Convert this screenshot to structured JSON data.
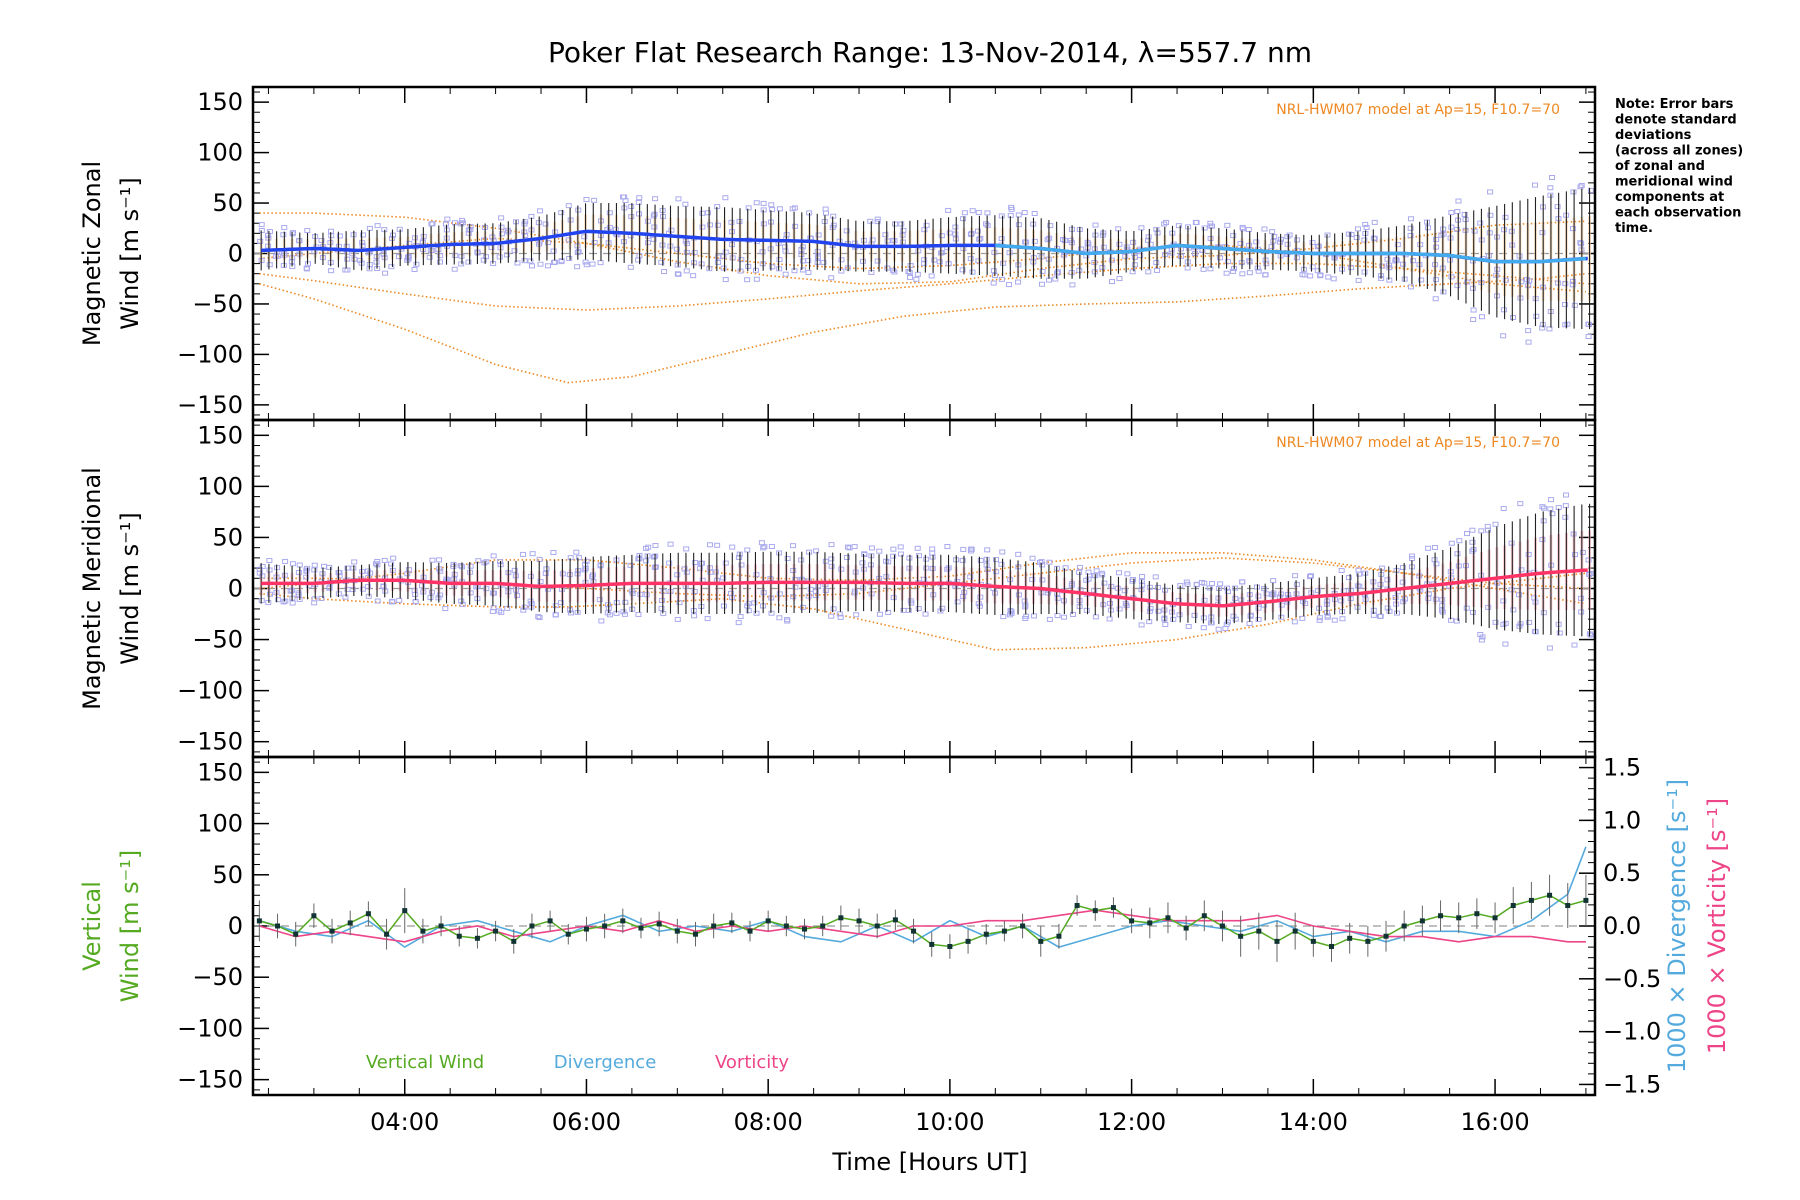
{
  "title": "Poker Flat Research Range: 13-Nov-2014, λ=557.7 nm",
  "note": [
    "Note: Error bars",
    "denote standard",
    "deviations",
    "(across all zones)",
    "of zonal and",
    "meridional wind",
    "components at",
    "each observation",
    "time."
  ],
  "xlabel": "Time [Hours UT]",
  "colors": {
    "zonal": "#2244ee",
    "zonal_light": "#44aaee",
    "meridional": "#ff3366",
    "model": "#ee8822",
    "scatter": "#aaaaee",
    "vertical": "#55aa22",
    "divergence": "#55aadd",
    "vorticity": "#ee4488",
    "axis": "#000000"
  },
  "chart_data": [
    {
      "type": "line",
      "panel": "zonal",
      "ylabel_lines": [
        "Magnetic Zonal",
        "Wind [m s⁻¹]"
      ],
      "xlim": [
        2.33,
        17.1
      ],
      "ylim": [
        -165,
        165
      ],
      "x_ticks": [
        "04:00",
        "06:00",
        "08:00",
        "10:00",
        "12:00",
        "14:00",
        "16:00"
      ],
      "y_ticks": [
        150,
        100,
        50,
        0,
        -50,
        -100,
        -150
      ],
      "model_label": "NRL-HWM07 model at Ap=15, F10.7=70",
      "series": [
        {
          "role": "mean",
          "x": [
            2.4,
            3,
            3.5,
            4,
            4.5,
            5,
            5.5,
            6,
            6.5,
            7,
            7.5,
            8,
            8.5,
            9,
            9.5,
            10,
            10.5,
            11,
            11.5,
            12,
            12.5,
            13,
            13.5,
            14,
            14.5,
            15,
            15.5,
            16,
            16.5,
            17
          ],
          "y": [
            3,
            5,
            3,
            6,
            9,
            10,
            15,
            22,
            20,
            17,
            14,
            13,
            12,
            7,
            7,
            8,
            8,
            5,
            0,
            2,
            8,
            5,
            2,
            0,
            0,
            0,
            -2,
            -8,
            -8,
            -5
          ],
          "err": [
            20,
            15,
            20,
            18,
            20,
            20,
            22,
            28,
            30,
            30,
            32,
            30,
            28,
            25,
            25,
            28,
            30,
            30,
            25,
            20,
            20,
            20,
            18,
            18,
            22,
            28,
            40,
            55,
            65,
            70
          ]
        },
        {
          "role": "model",
          "x": [
            2.4,
            3,
            4,
            5,
            5.8,
            6.5,
            7.5,
            8.5,
            9.5,
            10.5,
            11.5,
            12.5,
            13.5,
            14.5,
            15.5,
            16.5,
            17
          ],
          "y": [
            -30,
            -45,
            -75,
            -110,
            -128,
            -122,
            -100,
            -78,
            -62,
            -53,
            -50,
            -48,
            -42,
            -35,
            -30,
            -25,
            -20
          ]
        },
        {
          "role": "model",
          "x": [
            2.4,
            3,
            4,
            5,
            6,
            7,
            8,
            9,
            10,
            11,
            12,
            13,
            14,
            15,
            16,
            17
          ],
          "y": [
            -20,
            -27,
            -40,
            -52,
            -56,
            -52,
            -45,
            -37,
            -30,
            -22,
            -15,
            -10,
            -10,
            -15,
            -22,
            -30
          ]
        },
        {
          "role": "model",
          "x": [
            2.4,
            3,
            4,
            5,
            6,
            7,
            8,
            9,
            10,
            11,
            12,
            13,
            14,
            15,
            16,
            17
          ],
          "y": [
            40,
            40,
            36,
            25,
            10,
            -8,
            -22,
            -30,
            -28,
            -15,
            -5,
            -2,
            5,
            15,
            28,
            32
          ]
        },
        {
          "role": "model",
          "x": [
            2.4,
            3,
            4,
            5,
            6,
            7,
            8,
            9,
            10,
            11,
            12,
            13,
            14,
            15,
            16,
            17
          ],
          "y": [
            -5,
            0,
            8,
            15,
            10,
            0,
            -10,
            -15,
            -12,
            -5,
            5,
            8,
            0,
            -15,
            -30,
            -38
          ]
        }
      ]
    },
    {
      "type": "line",
      "panel": "meridional",
      "ylabel_lines": [
        "Magnetic Meridional",
        "Wind [m s⁻¹]"
      ],
      "xlim": [
        2.33,
        17.1
      ],
      "ylim": [
        -165,
        165
      ],
      "y_ticks": [
        150,
        100,
        50,
        0,
        -50,
        -100,
        -150
      ],
      "model_label": "NRL-HWM07 model at Ap=15, F10.7=70",
      "series": [
        {
          "role": "mean",
          "x": [
            2.4,
            3,
            3.5,
            4,
            4.5,
            5,
            5.5,
            6,
            6.5,
            7,
            7.5,
            8,
            8.5,
            9,
            9.5,
            10,
            10.5,
            11,
            11.5,
            12,
            12.5,
            13,
            13.5,
            14,
            14.5,
            15,
            15.5,
            16,
            16.5,
            17
          ],
          "y": [
            5,
            5,
            8,
            8,
            5,
            5,
            2,
            3,
            5,
            5,
            5,
            6,
            6,
            6,
            5,
            5,
            2,
            0,
            -5,
            -10,
            -15,
            -17,
            -13,
            -8,
            -5,
            0,
            5,
            10,
            15,
            18
          ],
          "err": [
            20,
            15,
            15,
            18,
            20,
            22,
            25,
            28,
            28,
            30,
            30,
            30,
            30,
            28,
            28,
            28,
            28,
            25,
            20,
            20,
            18,
            18,
            18,
            18,
            20,
            25,
            35,
            50,
            60,
            65
          ]
        },
        {
          "role": "model",
          "x": [
            2.4,
            3,
            4,
            5,
            5.8,
            6.5,
            7.5,
            8.5,
            9.5,
            10.5,
            11.5,
            12.5,
            13.5,
            14.5,
            15.5,
            16.5,
            17
          ],
          "y": [
            -5,
            -10,
            -15,
            -18,
            -18,
            -15,
            -10,
            -20,
            -40,
            -60,
            -58,
            -50,
            -35,
            -15,
            0,
            10,
            15
          ]
        },
        {
          "role": "model",
          "x": [
            2.4,
            3,
            4,
            5,
            6,
            7,
            8,
            9,
            10,
            11,
            12,
            13,
            14,
            15,
            16,
            17
          ],
          "y": [
            0,
            5,
            15,
            28,
            28,
            20,
            10,
            8,
            12,
            25,
            35,
            35,
            28,
            15,
            5,
            0
          ]
        },
        {
          "role": "model",
          "x": [
            2.4,
            3,
            4,
            5,
            6,
            7,
            8,
            9,
            10,
            11,
            12,
            13,
            14,
            15,
            16,
            17
          ],
          "y": [
            10,
            10,
            8,
            5,
            0,
            -5,
            -8,
            -5,
            5,
            15,
            25,
            30,
            25,
            15,
            0,
            -15
          ]
        }
      ]
    },
    {
      "type": "line",
      "panel": "vertical",
      "ylabel_lines": [
        "Vertical",
        "Wind [m s⁻¹]"
      ],
      "right_ylabel_lines": [
        "1000 × Divergence [s⁻¹]",
        "1000 × Vorticity [s⁻¹]"
      ],
      "xlim": [
        2.33,
        17.1
      ],
      "ylim": [
        -165,
        165
      ],
      "y2lim": [
        -1.6,
        1.6
      ],
      "y_ticks": [
        150,
        100,
        50,
        0,
        -50,
        -100,
        -150
      ],
      "y2_ticks": [
        "1.5",
        "1.0",
        "0.5",
        "0.0",
        "−0.5",
        "−1.0",
        "−1.5"
      ],
      "legend": [
        "Vertical Wind",
        "Divergence",
        "Vorticity"
      ],
      "series": [
        {
          "name": "Vertical Wind",
          "x": [
            2.4,
            2.6,
            2.8,
            3.0,
            3.2,
            3.4,
            3.6,
            3.8,
            4.0,
            4.2,
            4.4,
            4.6,
            4.8,
            5.0,
            5.2,
            5.4,
            5.6,
            5.8,
            6.0,
            6.2,
            6.4,
            6.6,
            6.8,
            7.0,
            7.2,
            7.4,
            7.6,
            7.8,
            8.0,
            8.2,
            8.4,
            8.6,
            8.8,
            9.0,
            9.2,
            9.4,
            9.6,
            9.8,
            10.0,
            10.2,
            10.4,
            10.6,
            10.8,
            11.0,
            11.2,
            11.4,
            11.6,
            11.8,
            12.0,
            12.2,
            12.4,
            12.6,
            12.8,
            13.0,
            13.2,
            13.4,
            13.6,
            13.8,
            14.0,
            14.2,
            14.4,
            14.6,
            14.8,
            15.0,
            15.2,
            15.4,
            15.6,
            15.8,
            16.0,
            16.2,
            16.4,
            16.6,
            16.8,
            17.0
          ],
          "y": [
            5,
            0,
            -8,
            10,
            -5,
            3,
            12,
            -8,
            15,
            -5,
            0,
            -10,
            -12,
            -5,
            -15,
            0,
            5,
            -8,
            -3,
            0,
            5,
            -2,
            2,
            -5,
            -8,
            0,
            3,
            -5,
            5,
            0,
            -3,
            0,
            8,
            5,
            0,
            6,
            -5,
            -18,
            -20,
            -15,
            -8,
            -5,
            0,
            -15,
            -10,
            20,
            15,
            18,
            5,
            3,
            8,
            -2,
            10,
            0,
            -10,
            -5,
            -15,
            -5,
            -15,
            -20,
            -12,
            -15,
            -10,
            0,
            5,
            10,
            8,
            12,
            8,
            20,
            25,
            30,
            20,
            25
          ],
          "err": [
            20,
            12,
            12,
            12,
            12,
            12,
            12,
            15,
            22,
            12,
            10,
            10,
            10,
            10,
            12,
            12,
            10,
            10,
            12,
            12,
            12,
            10,
            12,
            12,
            12,
            12,
            10,
            10,
            10,
            10,
            10,
            10,
            12,
            12,
            12,
            10,
            12,
            12,
            12,
            12,
            10,
            10,
            12,
            15,
            12,
            10,
            10,
            10,
            12,
            15,
            15,
            12,
            15,
            15,
            20,
            18,
            20,
            18,
            15,
            15,
            15,
            15,
            15,
            15,
            15,
            15,
            15,
            15,
            15,
            18,
            18,
            20,
            22,
            25
          ]
        },
        {
          "name": "Divergence",
          "x": [
            2.4,
            2.8,
            3.2,
            3.6,
            4.0,
            4.4,
            4.8,
            5.2,
            5.6,
            6.0,
            6.4,
            6.8,
            7.2,
            7.6,
            8.0,
            8.4,
            8.8,
            9.2,
            9.6,
            10.0,
            10.4,
            10.8,
            11.2,
            11.6,
            12.0,
            12.4,
            12.8,
            13.2,
            13.6,
            14.0,
            14.4,
            14.8,
            15.2,
            15.6,
            16.0,
            16.4,
            16.8,
            17.0
          ],
          "y": [
            0.05,
            -0.05,
            -0.1,
            0.05,
            -0.2,
            0.0,
            0.05,
            -0.05,
            -0.15,
            0.0,
            0.1,
            -0.05,
            0.0,
            -0.05,
            0.05,
            -0.1,
            -0.15,
            0.0,
            -0.15,
            0.05,
            -0.1,
            0.0,
            -0.2,
            -0.1,
            0.0,
            0.05,
            0.0,
            -0.05,
            0.05,
            -0.1,
            -0.05,
            -0.15,
            -0.05,
            -0.05,
            -0.1,
            0.05,
            0.3,
            0.75
          ]
        },
        {
          "name": "Vorticity",
          "x": [
            2.4,
            2.8,
            3.2,
            3.6,
            4.0,
            4.4,
            4.8,
            5.2,
            5.6,
            6.0,
            6.4,
            6.8,
            7.2,
            7.6,
            8.0,
            8.4,
            8.8,
            9.2,
            9.6,
            10.0,
            10.4,
            10.8,
            11.2,
            11.6,
            12.0,
            12.4,
            12.8,
            13.2,
            13.6,
            14.0,
            14.4,
            14.8,
            15.2,
            15.6,
            16.0,
            16.4,
            16.8,
            17.0
          ],
          "y": [
            0.0,
            -0.1,
            -0.05,
            -0.1,
            -0.15,
            -0.05,
            0.0,
            -0.1,
            -0.05,
            0.0,
            -0.05,
            0.05,
            -0.05,
            0.0,
            -0.05,
            0.0,
            -0.05,
            -0.1,
            0.0,
            0.0,
            0.05,
            0.05,
            0.1,
            0.15,
            0.1,
            0.05,
            0.05,
            0.05,
            0.1,
            0.0,
            -0.05,
            -0.1,
            -0.1,
            -0.15,
            -0.1,
            -0.1,
            -0.15,
            -0.15
          ]
        }
      ]
    }
  ]
}
